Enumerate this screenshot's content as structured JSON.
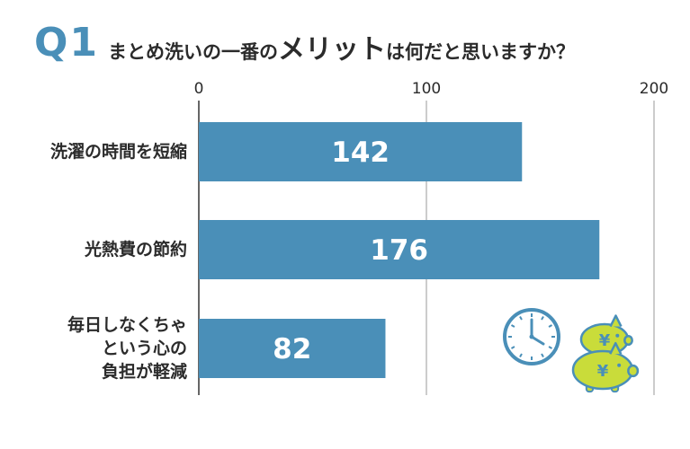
{
  "header": {
    "q_number": "Q1",
    "question_before": "まとめ洗いの一番の",
    "question_emphasis": "メリット",
    "question_after": "は何だと思いますか？"
  },
  "colors": {
    "accent": "#4a8fb8",
    "bar": "#4a8fb8",
    "gridline": "#9a9a9a",
    "axis": "#333333",
    "text": "#2b2b2b",
    "illustration_line": "#4a8fb8",
    "pig_fill": "#c9dc3a"
  },
  "illustrations": {
    "clock": "clock-icon",
    "pig_top": "piggy-bank-icon",
    "pig_bottom": "piggy-bank-icon",
    "currency_symbol": "¥"
  },
  "chart_data": {
    "type": "bar",
    "orientation": "horizontal",
    "categories": [
      "洗濯の時間を短縮",
      "光熱費の節約",
      "毎日しなくちゃという心の負担が軽減"
    ],
    "category_lines": [
      [
        "洗濯の時間を短縮"
      ],
      [
        "光熱費の節約"
      ],
      [
        "毎日しなくちゃ",
        "という心の",
        "負担が軽減"
      ]
    ],
    "values": [
      142,
      176,
      82
    ],
    "data_labels": [
      "142",
      "176",
      "82"
    ],
    "x_ticks": [
      0,
      100,
      200
    ],
    "tick_labels": [
      "0",
      "100",
      "200"
    ],
    "xlim": [
      0,
      200
    ],
    "grid": true,
    "legend": "none"
  }
}
